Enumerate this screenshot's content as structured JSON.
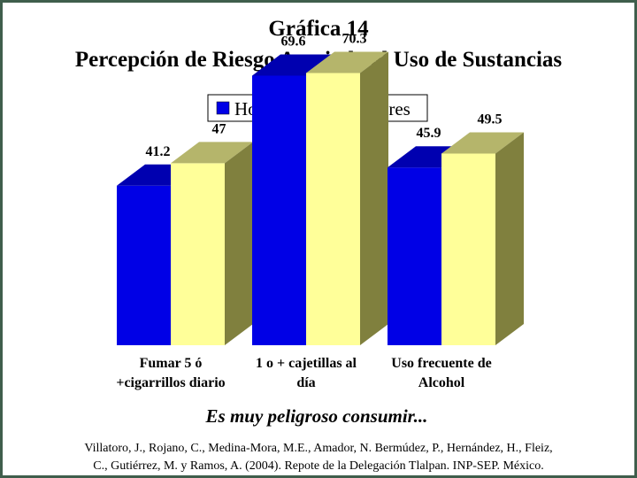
{
  "chart_data": {
    "type": "bar",
    "title": "Gráfica 14",
    "subtitle": "Percepción de Riesgo Asociada al Uso de Sustancias",
    "categories": [
      [
        "Fumar 5 ó",
        "+cigarrillos diario"
      ],
      [
        "1 o + cajetillas al",
        "día"
      ],
      [
        "Uso frecuente de",
        "Alcohol"
      ]
    ],
    "series": [
      {
        "name": "Hombres",
        "values": [
          41.2,
          69.6,
          45.9
        ],
        "labels": [
          "41.2",
          "69.6",
          "45.9"
        ],
        "color": "#0000e6",
        "top_color": "#0000b0",
        "side_color": "#000090"
      },
      {
        "name": "Mujeres",
        "values": [
          47,
          70.3,
          49.5
        ],
        "labels": [
          "47",
          "70.3",
          "49.5"
        ],
        "color": "#ffff99",
        "top_color": "#b5b56b",
        "side_color": "#80803e"
      }
    ],
    "ylim": [
      0,
      80
    ],
    "grid": false,
    "legend_position": "top-center",
    "three_d": true
  },
  "caption": "Es muy peligroso consumir...",
  "source_lines": [
    "Villatoro, J., Rojano, C., Medina-Mora, M.E., Amador, N. Bermúdez, P., Hernández, H., Fleiz,",
    "C., Gutiérrez, M. y Ramos, A. (2004). Repote de la Delegación Tlalpan. INP-SEP. México."
  ],
  "colors": {
    "frame": "#3f5e4c",
    "background": "#ffffff",
    "text": "#000000"
  }
}
